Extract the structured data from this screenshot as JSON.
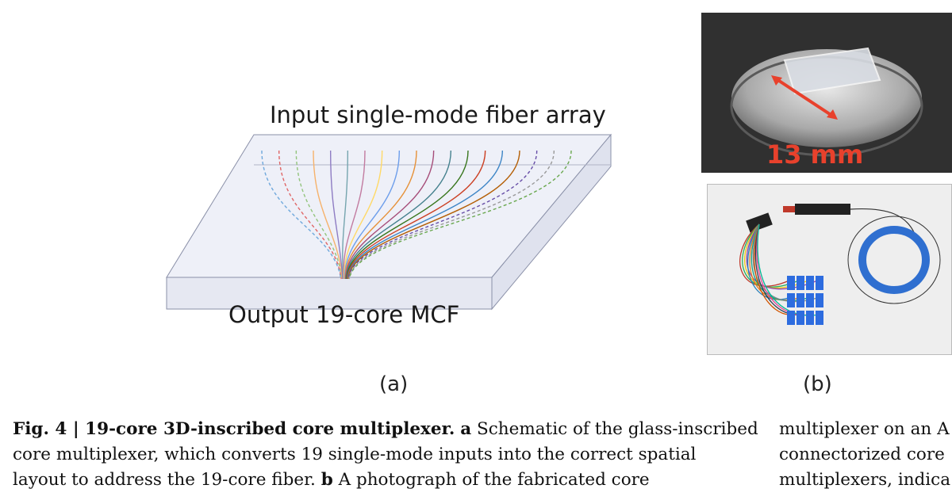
{
  "figure_a": {
    "input_label": "Input single-mode fiber array",
    "output_label": "Output 19-core MCF",
    "sublabel": "(a)"
  },
  "figure_b": {
    "scale_label": "13 mm",
    "sublabel": "(b)",
    "arrow_color": "#e8412c"
  },
  "caption": {
    "fig_label": "Fig. 4 | 19-core 3D-inscribed core multiplexer.",
    "part_a_letter": "a",
    "line1_text": "Schematic of the glass-inscribed",
    "line2": "core multiplexer, which converts 19 single-mode inputs into the correct spatial",
    "line3_start": "layout to address the 19-core fiber.",
    "part_b_letter": "b",
    "line3_end": "A photograph of the fabricated core",
    "right_line1": "multiplexer on an A",
    "right_line2": "connectorized core",
    "right_line3": "multiplexers, indica"
  }
}
